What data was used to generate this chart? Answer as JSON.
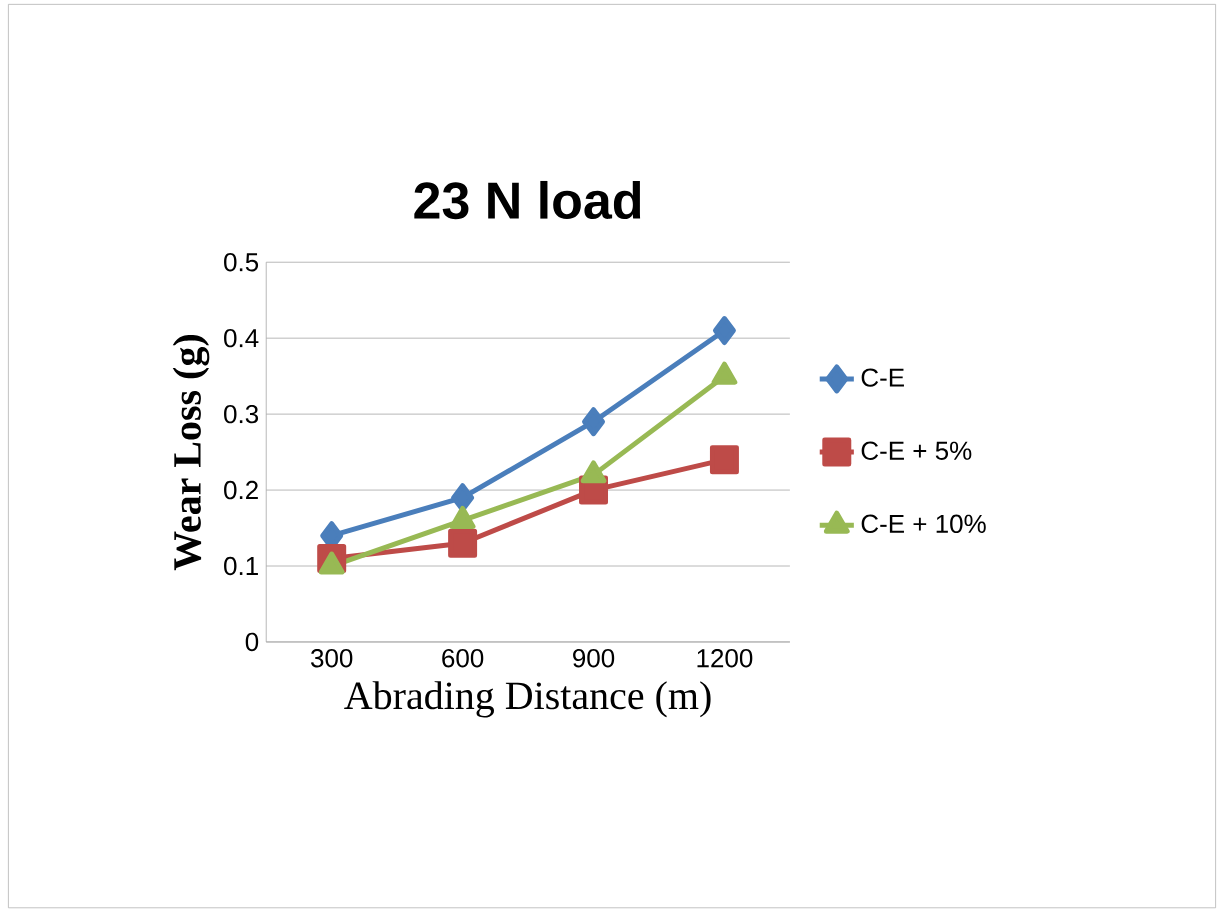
{
  "chart_data": {
    "type": "line",
    "title": "23 N load",
    "xlabel": "Abrading Distance (m)",
    "ylabel": "Wear Loss (g)",
    "categories": [
      "300",
      "600",
      "900",
      "1200"
    ],
    "series": [
      {
        "name": "C-E",
        "color": "#4a7ebb",
        "marker": "diamond",
        "values": [
          0.14,
          0.19,
          0.29,
          0.41
        ]
      },
      {
        "name": "C-E + 5%",
        "color": "#be4b48",
        "marker": "square",
        "values": [
          0.11,
          0.13,
          0.2,
          0.24
        ]
      },
      {
        "name": "C-E + 10%",
        "color": "#98b954",
        "marker": "triangle",
        "values": [
          0.1,
          0.16,
          0.22,
          0.35
        ]
      }
    ],
    "ylim": [
      0,
      0.5
    ],
    "yticks": [
      0,
      0.1,
      0.2,
      0.3,
      0.4,
      0.5
    ],
    "grid": "y",
    "legend": "right"
  }
}
